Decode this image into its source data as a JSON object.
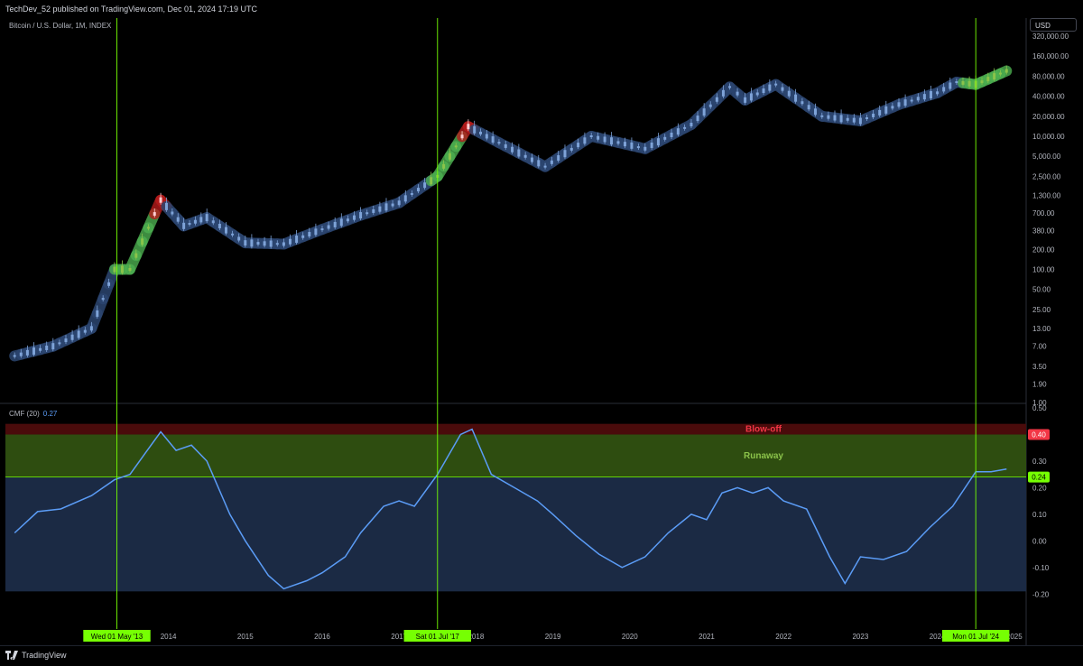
{
  "header": {
    "published": "TechDev_52 published on TradingView.com, Dec 01, 2024 17:19 UTC"
  },
  "symbol": "Bitcoin / U.S. Dollar, 1M, INDEX",
  "currency": "USD",
  "indicator": {
    "name": "CMF (20)",
    "value": "0.27"
  },
  "footer": {
    "brand": "TradingView"
  },
  "colors": {
    "blue": "#5b9cf6",
    "band_blue": "#1b2a44",
    "green": "#4caf50",
    "red": "#b71c1c",
    "vline": "#76ff03"
  },
  "chart_data": [
    {
      "type": "line",
      "title": "Bitcoin / U.S. Dollar, 1M, INDEX",
      "scale": "log",
      "price_axis_ticks": [
        "320,000.00",
        "160,000.00",
        "80,000.00",
        "40,000.00",
        "20,000.00",
        "10,000.00",
        "5,000.00",
        "2,500.00",
        "1,300.00",
        "700.00",
        "380.00",
        "200.00",
        "100.00",
        "50.00",
        "25.00",
        "13.00",
        "7.00",
        "3.50",
        "1.90",
        "1.00"
      ],
      "time_axis_labels": [
        "2013",
        "2014",
        "2015",
        "2016",
        "2017",
        "2018",
        "2019",
        "2020",
        "2021",
        "2022",
        "2023",
        "2024",
        "2025"
      ],
      "x": [
        2012.0,
        2012.5,
        2013.0,
        2013.3,
        2013.5,
        2013.9,
        2014.2,
        2014.5,
        2015.0,
        2015.5,
        2016.0,
        2016.5,
        2017.0,
        2017.5,
        2017.9,
        2018.3,
        2018.9,
        2019.5,
        2020.2,
        2020.8,
        2021.3,
        2021.5,
        2021.9,
        2022.5,
        2023.0,
        2023.5,
        2024.0,
        2024.25,
        2024.5,
        2024.9
      ],
      "y": [
        5,
        7,
        13,
        100,
        100,
        1100,
        450,
        600,
        250,
        240,
        400,
        650,
        1000,
        2500,
        14000,
        8000,
        3500,
        10000,
        6500,
        15000,
        55000,
        35000,
        60000,
        20000,
        17000,
        30000,
        45000,
        65000,
        60000,
        96000
      ],
      "phase_colors": {
        "green": "accumulation/runaway",
        "red": "blow-off",
        "blue": "neutral"
      }
    },
    {
      "type": "line",
      "title": "CMF (20)",
      "current_value": 0.27,
      "ylim": [
        -0.25,
        0.5
      ],
      "yticks": [
        0.5,
        0.4,
        0.3,
        0.2,
        0.1,
        0.0,
        -0.1,
        -0.2
      ],
      "zones": [
        {
          "label": "Blow-off",
          "from": 0.4,
          "to": 0.44,
          "color": "#b71c1c"
        },
        {
          "label": "Runaway",
          "from": 0.24,
          "to": 0.4,
          "color": "#33691e"
        }
      ],
      "levels": [
        "0.40",
        "0.24"
      ],
      "x": [
        2012.0,
        2012.3,
        2012.6,
        2013.0,
        2013.3,
        2013.5,
        2013.7,
        2013.9,
        2014.1,
        2014.3,
        2014.5,
        2014.8,
        2015.0,
        2015.3,
        2015.5,
        2015.8,
        2016.0,
        2016.3,
        2016.5,
        2016.8,
        2017.0,
        2017.2,
        2017.5,
        2017.8,
        2017.95,
        2018.2,
        2018.5,
        2018.8,
        2019.0,
        2019.3,
        2019.6,
        2019.9,
        2020.2,
        2020.5,
        2020.8,
        2021.0,
        2021.2,
        2021.4,
        2021.6,
        2021.8,
        2022.0,
        2022.3,
        2022.6,
        2022.8,
        2023.0,
        2023.3,
        2023.6,
        2023.9,
        2024.2,
        2024.5,
        2024.7,
        2024.9
      ],
      "y": [
        0.03,
        0.11,
        0.12,
        0.17,
        0.23,
        0.25,
        0.33,
        0.41,
        0.34,
        0.36,
        0.3,
        0.1,
        0.0,
        -0.13,
        -0.18,
        -0.15,
        -0.12,
        -0.06,
        0.03,
        0.13,
        0.15,
        0.13,
        0.25,
        0.4,
        0.42,
        0.25,
        0.2,
        0.15,
        0.1,
        0.02,
        -0.05,
        -0.1,
        -0.06,
        0.03,
        0.1,
        0.08,
        0.18,
        0.2,
        0.18,
        0.2,
        0.15,
        0.12,
        -0.06,
        -0.16,
        -0.06,
        -0.07,
        -0.04,
        0.05,
        0.13,
        0.26,
        0.26,
        0.27
      ],
      "vertical_markers": [
        "Wed 01 May '13",
        "Sat 01 Jul '17",
        "Mon 01 Jul '24"
      ]
    }
  ]
}
